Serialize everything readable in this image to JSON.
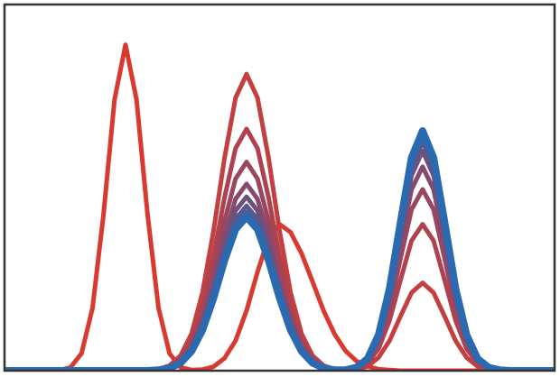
{
  "chart_data": {
    "type": "line",
    "xlim": [
      0,
      100
    ],
    "ylim": [
      0,
      1
    ],
    "x": [
      0,
      2,
      4,
      6,
      8,
      10,
      12,
      14,
      16,
      18,
      20,
      22,
      24,
      26,
      28,
      30,
      32,
      34,
      36,
      38,
      40,
      42,
      44,
      46,
      48,
      50,
      52,
      54,
      56,
      58,
      60,
      62,
      64,
      66,
      68,
      70,
      72,
      74,
      76,
      78,
      80,
      82,
      84,
      86,
      88,
      90,
      92,
      94,
      96,
      98,
      100
    ],
    "series": [
      {
        "color": "#d93a2f",
        "values": [
          0,
          0,
          0,
          0,
          0,
          0.001,
          0.009,
          0.047,
          0.171,
          0.427,
          0.74,
          0.89,
          0.74,
          0.427,
          0.171,
          0.047,
          0.009,
          0.002,
          0.003,
          0.011,
          0.034,
          0.082,
          0.164,
          0.27,
          0.362,
          0.4,
          0.378,
          0.32,
          0.243,
          0.164,
          0.1,
          0.054,
          0.026,
          0.012,
          0.004,
          0.002,
          0,
          0,
          0,
          0,
          0,
          0,
          0,
          0,
          0,
          0,
          0,
          0,
          0,
          0,
          0
        ]
      },
      {
        "color": "#c43f3f",
        "values": [
          0,
          0,
          0,
          0,
          0,
          0,
          0,
          0,
          0,
          0,
          0,
          0,
          0,
          0.001,
          0.004,
          0.014,
          0.041,
          0.101,
          0.214,
          0.382,
          0.581,
          0.745,
          0.81,
          0.745,
          0.581,
          0.382,
          0.214,
          0.101,
          0.041,
          0.014,
          0.004,
          0.002,
          0.003,
          0.012,
          0.036,
          0.082,
          0.149,
          0.213,
          0.24,
          0.213,
          0.149,
          0.082,
          0.036,
          0.012,
          0.003,
          0.001,
          0,
          0,
          0,
          0,
          0
        ]
      },
      {
        "color": "#b0424f",
        "values": [
          0,
          0,
          0,
          0,
          0,
          0,
          0,
          0,
          0,
          0,
          0,
          0,
          0,
          0.001,
          0.003,
          0.011,
          0.033,
          0.083,
          0.174,
          0.312,
          0.473,
          0.607,
          0.66,
          0.607,
          0.473,
          0.312,
          0.174,
          0.083,
          0.033,
          0.011,
          0.003,
          0.002,
          0.006,
          0.02,
          0.06,
          0.137,
          0.248,
          0.355,
          0.4,
          0.355,
          0.248,
          0.137,
          0.06,
          0.02,
          0.006,
          0.001,
          0,
          0,
          0,
          0,
          0
        ]
      },
      {
        "color": "#9a4660",
        "values": [
          0,
          0,
          0,
          0,
          0,
          0,
          0,
          0,
          0,
          0,
          0,
          0,
          0,
          0.001,
          0.003,
          0.01,
          0.029,
          0.071,
          0.15,
          0.269,
          0.409,
          0.524,
          0.57,
          0.524,
          0.409,
          0.269,
          0.15,
          0.071,
          0.029,
          0.01,
          0.003,
          0.002,
          0.007,
          0.025,
          0.074,
          0.17,
          0.307,
          0.44,
          0.495,
          0.44,
          0.307,
          0.17,
          0.074,
          0.025,
          0.007,
          0.001,
          0,
          0,
          0,
          0,
          0
        ]
      },
      {
        "color": "#864a6e",
        "values": [
          0,
          0,
          0,
          0,
          0,
          0,
          0,
          0,
          0,
          0,
          0,
          0,
          0,
          0.001,
          0.003,
          0.009,
          0.026,
          0.064,
          0.135,
          0.241,
          0.366,
          0.469,
          0.51,
          0.469,
          0.366,
          0.241,
          0.135,
          0.064,
          0.026,
          0.009,
          0.003,
          0.003,
          0.008,
          0.028,
          0.083,
          0.191,
          0.346,
          0.495,
          0.557,
          0.495,
          0.346,
          0.191,
          0.083,
          0.028,
          0.008,
          0.002,
          0,
          0,
          0,
          0,
          0
        ]
      },
      {
        "color": "#6f507d",
        "values": [
          0,
          0,
          0,
          0,
          0,
          0,
          0,
          0,
          0,
          0,
          0,
          0,
          0,
          0,
          0.002,
          0.008,
          0.024,
          0.059,
          0.125,
          0.224,
          0.341,
          0.437,
          0.475,
          0.437,
          0.341,
          0.224,
          0.125,
          0.059,
          0.024,
          0.008,
          0.002,
          0.002,
          0.008,
          0.031,
          0.089,
          0.206,
          0.373,
          0.533,
          0.6,
          0.533,
          0.373,
          0.206,
          0.089,
          0.031,
          0.008,
          0.002,
          0,
          0,
          0,
          0,
          0
        ]
      },
      {
        "color": "#5a578e",
        "values": [
          0,
          0,
          0,
          0,
          0,
          0,
          0,
          0,
          0,
          0,
          0,
          0,
          0,
          0,
          0.002,
          0.008,
          0.023,
          0.056,
          0.119,
          0.212,
          0.323,
          0.414,
          0.45,
          0.414,
          0.323,
          0.212,
          0.119,
          0.056,
          0.023,
          0.008,
          0.002,
          0.002,
          0.009,
          0.032,
          0.093,
          0.214,
          0.388,
          0.555,
          0.625,
          0.555,
          0.388,
          0.214,
          0.093,
          0.032,
          0.009,
          0.002,
          0,
          0,
          0,
          0,
          0
        ]
      },
      {
        "color": "#45609f",
        "values": [
          0,
          0,
          0,
          0,
          0,
          0,
          0,
          0,
          0,
          0,
          0,
          0,
          0,
          0,
          0.002,
          0.007,
          0.022,
          0.054,
          0.114,
          0.204,
          0.31,
          0.398,
          0.433,
          0.398,
          0.31,
          0.204,
          0.114,
          0.054,
          0.022,
          0.007,
          0.002,
          0.002,
          0.009,
          0.033,
          0.096,
          0.221,
          0.399,
          0.571,
          0.643,
          0.571,
          0.399,
          0.221,
          0.096,
          0.033,
          0.009,
          0.002,
          0,
          0,
          0,
          0,
          0
        ]
      },
      {
        "color": "#2a6ab0",
        "values": [
          0,
          0,
          0,
          0,
          0,
          0,
          0,
          0,
          0,
          0,
          0,
          0,
          0,
          0,
          0.002,
          0.007,
          0.021,
          0.053,
          0.111,
          0.198,
          0.301,
          0.386,
          0.42,
          0.386,
          0.301,
          0.198,
          0.111,
          0.053,
          0.021,
          0.007,
          0.002,
          0.002,
          0.009,
          0.033,
          0.098,
          0.225,
          0.407,
          0.582,
          0.655,
          0.582,
          0.407,
          0.225,
          0.098,
          0.033,
          0.009,
          0.002,
          0,
          0,
          0,
          0,
          0
        ]
      }
    ]
  }
}
